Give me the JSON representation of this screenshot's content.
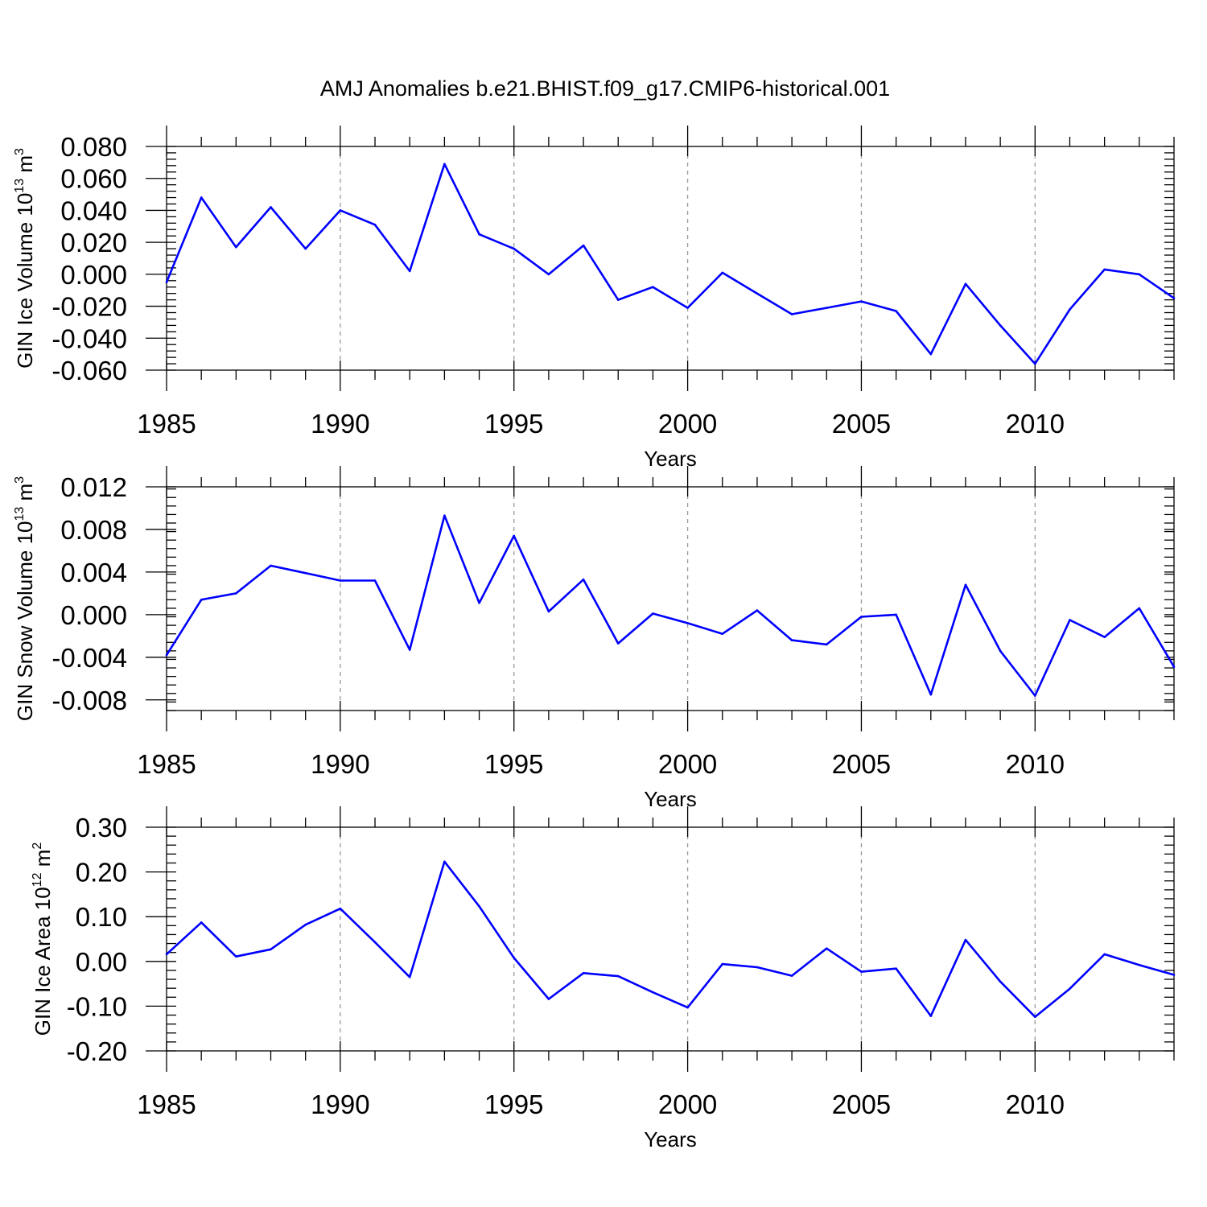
{
  "title": "AMJ Anomalies b.e21.BHIST.f09_g17.CMIP6-historical.001",
  "colors": {
    "line": "#0000ff",
    "grid": "#9a9a9a",
    "axis": "#000000"
  },
  "chart_data": [
    {
      "type": "line",
      "ylabel": "GIN Ice Volume 10",
      "ylabel_exp": "13",
      "ylabel_unit": " m",
      "ylabel_unit_exp": "3",
      "xlabel": "Years",
      "xlim": [
        1985,
        2014
      ],
      "ylim": [
        -0.06,
        0.08
      ],
      "x_ticks": [
        1985,
        1990,
        1995,
        2000,
        2005,
        2010
      ],
      "x_tick_labels": [
        "1985",
        "1990",
        "1995",
        "2000",
        "2005",
        "2010"
      ],
      "y_ticks": [
        0.08,
        0.06,
        0.04,
        0.02,
        0.0,
        -0.02,
        -0.04,
        -0.06
      ],
      "y_tick_labels": [
        "0.080",
        "0.060",
        "0.040",
        "0.020",
        "0.000",
        "-0.020",
        "-0.040",
        "-0.060"
      ],
      "x_grid": [
        1990,
        1995,
        2000,
        2005,
        2010
      ],
      "x": [
        1985,
        1986,
        1987,
        1988,
        1989,
        1990,
        1991,
        1992,
        1993,
        1994,
        1995,
        1996,
        1997,
        1998,
        1999,
        2000,
        2001,
        2002,
        2003,
        2004,
        2005,
        2006,
        2007,
        2008,
        2009,
        2010,
        2011,
        2012,
        2013,
        2014
      ],
      "values": [
        -0.005,
        0.048,
        0.017,
        0.042,
        0.016,
        0.04,
        0.031,
        0.002,
        0.069,
        0.025,
        0.016,
        0.0,
        0.018,
        -0.016,
        -0.008,
        -0.021,
        0.001,
        -0.012,
        -0.025,
        -0.021,
        -0.017,
        -0.023,
        -0.05,
        -0.006,
        -0.032,
        -0.056,
        -0.022,
        0.003,
        0.0,
        -0.015
      ]
    },
    {
      "type": "line",
      "ylabel": "GIN Snow Volume 10",
      "ylabel_exp": "13",
      "ylabel_unit": " m",
      "ylabel_unit_exp": "3",
      "xlabel": "Years",
      "xlim": [
        1985,
        2014
      ],
      "ylim": [
        -0.009,
        0.012
      ],
      "x_ticks": [
        1985,
        1990,
        1995,
        2000,
        2005,
        2010
      ],
      "x_tick_labels": [
        "1985",
        "1990",
        "1995",
        "2000",
        "2005",
        "2010"
      ],
      "y_ticks": [
        0.012,
        0.008,
        0.004,
        0.0,
        -0.004,
        -0.008
      ],
      "y_tick_labels": [
        "0.012",
        "0.008",
        "0.004",
        "0.000",
        "-0.004",
        "-0.008"
      ],
      "x_grid": [
        1990,
        1995,
        2000,
        2005,
        2010
      ],
      "x": [
        1985,
        1986,
        1987,
        1988,
        1989,
        1990,
        1991,
        1992,
        1993,
        1994,
        1995,
        1996,
        1997,
        1998,
        1999,
        2000,
        2001,
        2002,
        2003,
        2004,
        2005,
        2006,
        2007,
        2008,
        2009,
        2010,
        2011,
        2012,
        2013,
        2014
      ],
      "values": [
        -0.0038,
        0.0014,
        0.002,
        0.0046,
        0.0039,
        0.0032,
        0.0032,
        -0.0033,
        0.0093,
        0.0011,
        0.0074,
        0.0003,
        0.0033,
        -0.0027,
        0.0001,
        -0.0008,
        -0.0018,
        0.0004,
        -0.0024,
        -0.0028,
        -0.0002,
        0.0,
        -0.0075,
        0.0028,
        -0.0034,
        -0.0076,
        -0.0005,
        -0.0021,
        0.0006,
        -0.0049
      ]
    },
    {
      "type": "line",
      "ylabel": "GIN Ice Area 10",
      "ylabel_exp": "12",
      "ylabel_unit": " m",
      "ylabel_unit_exp": "2",
      "xlabel": "Years",
      "xlim": [
        1985,
        2014
      ],
      "ylim": [
        -0.2,
        0.3
      ],
      "x_ticks": [
        1985,
        1990,
        1995,
        2000,
        2005,
        2010
      ],
      "x_tick_labels": [
        "1985",
        "1990",
        "1995",
        "2000",
        "2005",
        "2010"
      ],
      "y_ticks": [
        0.3,
        0.2,
        0.1,
        0.0,
        -0.1,
        -0.2
      ],
      "y_tick_labels": [
        "0.30",
        "0.20",
        "0.10",
        "0.00",
        "-0.10",
        "-0.20"
      ],
      "x_grid": [
        1990,
        1995,
        2000,
        2005,
        2010
      ],
      "x": [
        1985,
        1986,
        1987,
        1988,
        1989,
        1990,
        1991,
        1992,
        1993,
        1994,
        1995,
        1996,
        1997,
        1998,
        1999,
        2000,
        2001,
        2002,
        2003,
        2004,
        2005,
        2006,
        2007,
        2008,
        2009,
        2010,
        2011,
        2012,
        2013,
        2014
      ],
      "values": [
        0.016,
        0.087,
        0.011,
        0.027,
        0.082,
        0.118,
        0.043,
        -0.035,
        0.223,
        0.123,
        0.008,
        -0.084,
        -0.026,
        -0.033,
        -0.069,
        -0.103,
        -0.006,
        -0.013,
        -0.032,
        0.029,
        -0.023,
        -0.016,
        -0.122,
        0.048,
        -0.045,
        -0.124,
        -0.061,
        0.016,
        -0.008,
        -0.03
      ]
    }
  ]
}
